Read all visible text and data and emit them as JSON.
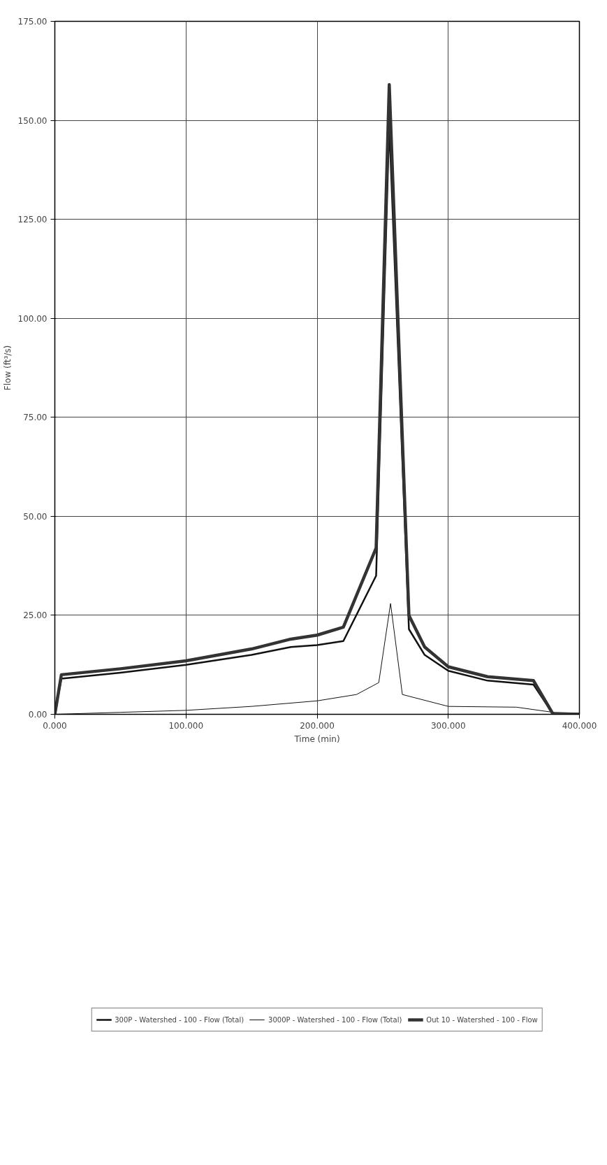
{
  "chart_data": {
    "type": "line",
    "xlabel": "Time (min)",
    "ylabel": "Flow (ft³/s)",
    "xlim": [
      0,
      400
    ],
    "ylim": [
      0,
      175
    ],
    "xticks": [
      {
        "value": 0,
        "label": "0.000"
      },
      {
        "value": 100,
        "label": "100.000"
      },
      {
        "value": 200,
        "label": "200.000"
      },
      {
        "value": 300,
        "label": "300.000"
      },
      {
        "value": 400,
        "label": "400.000"
      }
    ],
    "yticks": [
      {
        "value": 0,
        "label": "0.00"
      },
      {
        "value": 25,
        "label": "25.00"
      },
      {
        "value": 50,
        "label": "50.00"
      },
      {
        "value": 75,
        "label": "75.00"
      },
      {
        "value": 100,
        "label": "100.00"
      },
      {
        "value": 125,
        "label": "125.00"
      },
      {
        "value": 150,
        "label": "150.00"
      },
      {
        "value": 175,
        "label": "175.00"
      }
    ],
    "grid": true,
    "legend": "bottom",
    "line_style": "solid",
    "series": [
      {
        "name": "300P - Watershed - 100 - Flow (Total)",
        "color": "#111111",
        "x": [
          0,
          5,
          50,
          100,
          150,
          180,
          200,
          220,
          245,
          255,
          270,
          282,
          300,
          330,
          365,
          380,
          400
        ],
        "values": [
          0,
          9,
          10.5,
          12.5,
          15,
          17,
          17.5,
          18.5,
          35,
          149,
          21.5,
          15,
          11,
          8.5,
          7.5,
          0,
          0
        ]
      },
      {
        "name": "3000P - Watershed - 100 - Flow (Total)",
        "color": "#111111",
        "x": [
          0,
          50,
          100,
          150,
          200,
          230,
          247,
          256,
          265,
          300,
          352,
          380,
          400
        ],
        "values": [
          0,
          0.5,
          1,
          2,
          3.4,
          5,
          8,
          28,
          5,
          2,
          1.8,
          0.5,
          0.3
        ]
      },
      {
        "name": "Out 10 - Watershed - 100 - Flow",
        "color": "#333333",
        "x": [
          0,
          5,
          50,
          100,
          150,
          180,
          200,
          220,
          245,
          255,
          270,
          282,
          300,
          330,
          365,
          380,
          400
        ],
        "values": [
          0,
          10,
          11.5,
          13.5,
          16.5,
          19,
          20,
          22,
          42,
          159,
          25,
          17,
          12,
          9.5,
          8.5,
          0,
          0
        ]
      }
    ]
  }
}
